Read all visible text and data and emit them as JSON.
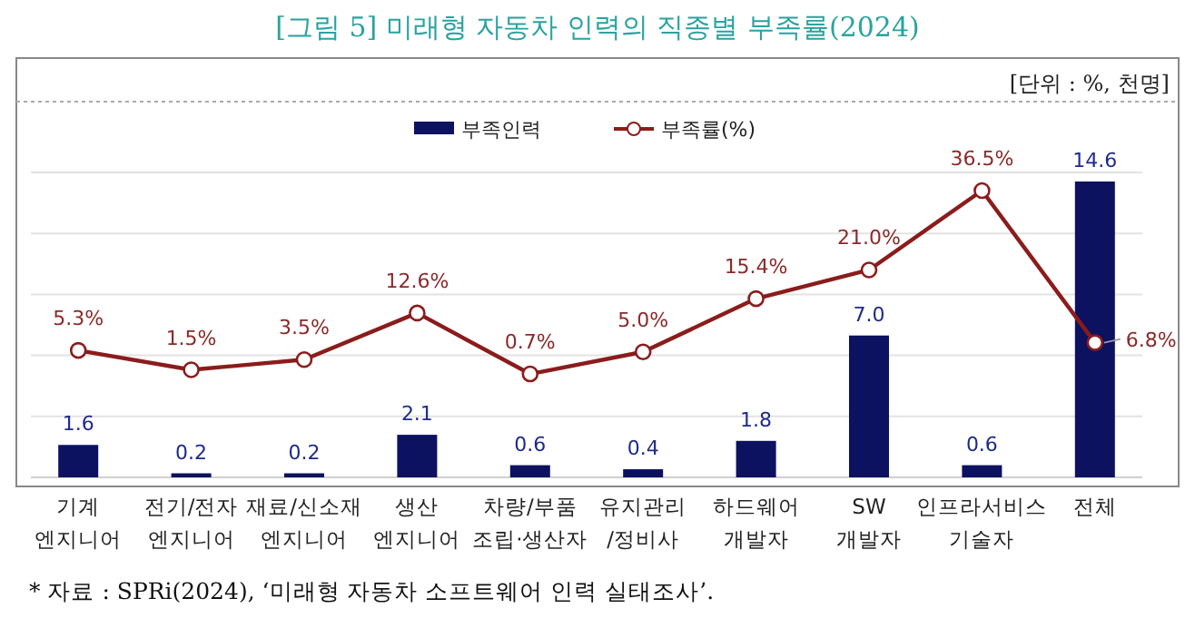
{
  "chart_data": {
    "type": "bar",
    "title": "[그림 5] 미래형 자동차 인력의 직종별 부족률(2024)",
    "categories": [
      "기계\n엔지니어",
      "전기/전자\n엔지니어",
      "재료/신소재\n엔지니어",
      "생산\n엔지니어",
      "차량/부품\n조립·생산자",
      "유지관리\n/정비사",
      "하드웨어\n개발자",
      "SW\n개발자",
      "인프라서비스\n기술자",
      "전체"
    ],
    "series": [
      {
        "name": "부족인력",
        "color": "#0c1160",
        "values": [
          1.6,
          0.2,
          0.2,
          2.1,
          0.6,
          0.4,
          1.8,
          7.0,
          0.6,
          14.6
        ],
        "value_labels": [
          "1.6",
          "0.2",
          "0.2",
          "2.1",
          "0.6",
          "0.4",
          "1.8",
          "7.0",
          "0.6",
          "14.6"
        ]
      },
      {
        "name": "부족률(%)",
        "type": "line",
        "axis": "y2",
        "color": "#8b1c1c",
        "values": [
          5.3,
          1.5,
          3.5,
          12.6,
          0.7,
          5.0,
          15.4,
          21.0,
          36.5,
          6.8
        ],
        "value_labels": [
          "5.3%",
          "1.5%",
          "3.5%",
          "12.6%",
          "0.7%",
          "5.0%",
          "15.4%",
          "21.0%",
          "36.5%",
          "6.8%"
        ]
      }
    ],
    "marker": "circle",
    "legend": "top",
    "grid": "y",
    "tick_labels": "x",
    "annotations": [
      "[단위 : %, 천명]",
      "* 자료 : SPRi(2024), ‘미래형 자동차 소프트웨어 인력 실태조사’."
    ]
  }
}
